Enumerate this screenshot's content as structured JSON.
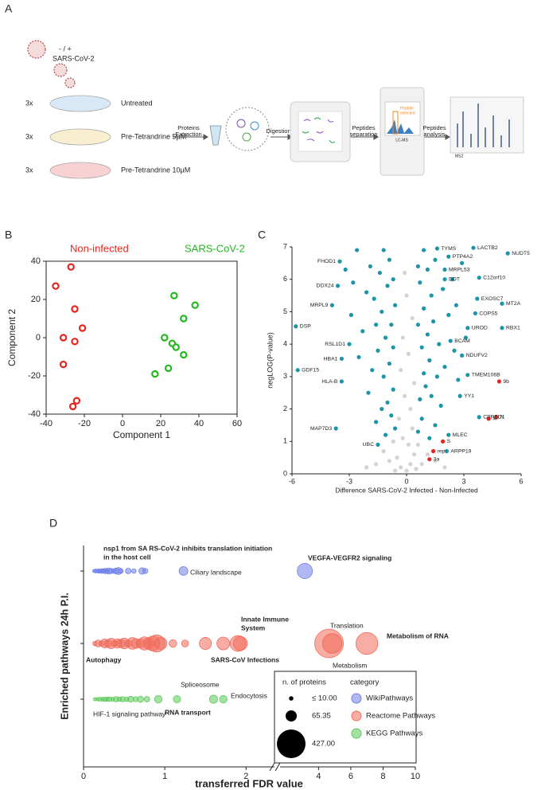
{
  "panel_a": {
    "panel": "A",
    "virus": [
      "- / +",
      "SARS-CoV-2"
    ],
    "conditions": [
      {
        "rep": "3x",
        "name": "Untreated"
      },
      {
        "rep": "3x",
        "name": "Pre-Tetrandrine 5µM"
      },
      {
        "rep": "3x",
        "name": "Pre-Tetrandrine 10µM"
      }
    ],
    "steps": {
      "extraction": [
        "Proteins",
        "Extraction"
      ],
      "digestion": "Digestion",
      "separation": [
        "Peptides",
        "separation"
      ],
      "analysis": [
        "Peptides",
        "analysis"
      ]
    },
    "instruments": {
      "lcms": "LC-MS",
      "selected": [
        "Peptide",
        "selected"
      ],
      "ms2": "MS2"
    }
  },
  "chart_data": [
    {
      "type": "scatter",
      "panel": "B",
      "xlabel": "Component 1",
      "ylabel": "Component 2",
      "xlim": [
        -40,
        60
      ],
      "xticks": [
        -40,
        -20,
        0,
        20,
        40,
        60
      ],
      "ylim": [
        -40,
        40
      ],
      "yticks": [
        -40,
        -20,
        0,
        20,
        40
      ],
      "series": [
        {
          "name": "Non-infected",
          "color": "#e8251d",
          "x": [
            -27,
            -35,
            -25,
            -31,
            -21,
            -25,
            -31,
            -24,
            -26
          ],
          "values": [
            37,
            27,
            15,
            0,
            5,
            -2,
            -14,
            -33,
            -36
          ]
        },
        {
          "name": "SARS-CoV-2",
          "color": "#22b81e",
          "x": [
            27,
            38,
            32,
            22,
            26,
            28,
            32,
            24,
            17
          ],
          "values": [
            22,
            17,
            10,
            0,
            -3,
            -5,
            -9,
            -16,
            -19
          ]
        }
      ]
    },
    {
      "type": "volcano",
      "panel": "C",
      "xlabel": "Difference SARS-CoV-2 Infected - Non-Infected",
      "ylabel": "negLOG(P-value)",
      "xlim": [
        -6,
        6
      ],
      "xticks": [
        -6,
        -3,
        0,
        3,
        6
      ],
      "ylim": [
        0,
        7
      ],
      "yticks": [
        0,
        1,
        2,
        3,
        4,
        5,
        6,
        7
      ],
      "groups": [
        {
          "color": "#d3d3d3",
          "x": [
            0,
            0.2,
            -0.3,
            0.4,
            -0.5,
            0.1,
            -0.2,
            0.3,
            -0.4,
            0.2,
            -0.1,
            0.4,
            -0.3,
            0.1,
            -0.2,
            0.3,
            0,
            -0.1,
            0.8,
            -0.9,
            1.1,
            -1.2,
            0.6,
            -0.7,
            1.5,
            -1.6,
            0.5,
            -0.6,
            2,
            -2.1
          ],
          "values": [
            0.1,
            0.3,
            0.2,
            0.6,
            0.5,
            0.9,
            1.1,
            1.4,
            1.7,
            2,
            2.4,
            2.8,
            3.2,
            3.7,
            4.2,
            4.8,
            5.5,
            6.2,
            0.3,
            0.4,
            0.6,
            0.7,
            0.9,
            1,
            0.4,
            0.3,
            0.15,
            0.1,
            0.2,
            0.2
          ]
        },
        {
          "color": "#1b95a8",
          "x": [
            -0.6,
            -0.8,
            -1,
            -0.7,
            -1.2,
            -0.9,
            -1.5,
            -1.1,
            -0.8,
            -1.3,
            -1.7,
            -1,
            -1.4,
            -0.9,
            -1.2,
            -2,
            -1.8,
            -2.3,
            -2.1,
            -1.9,
            -2.6,
            -2.8,
            -2.5,
            -1.6,
            -1.3,
            -0.7,
            -0.6,
            -0.7,
            -1.6,
            -3.2,
            -2.9,
            -1.1,
            0.6,
            0.8,
            0.7,
            1,
            0.9,
            1.2,
            0.8,
            1.1,
            1.4,
            0.9,
            1.3,
            0.7,
            1.1,
            1.5,
            0.9,
            1.8,
            2,
            1.7,
            2.2,
            1.9,
            2.4,
            2.6,
            2.5,
            1.5,
            1.3,
            0.6,
            0.6,
            1.6,
            2.9,
            3.1,
            2.7,
            1.2
          ],
          "values": [
            1.4,
            1.8,
            2.2,
            2.6,
            3,
            3.4,
            3.8,
            4.2,
            4.6,
            5,
            5.4,
            5.8,
            6.2,
            6.6,
            6.9,
            2.5,
            3.2,
            4.4,
            5.6,
            6.4,
            6.9,
            5.9,
            3.6,
            1.6,
            2,
            3.9,
            5.2,
            6,
            4.6,
            6.3,
            4.9,
            1.2,
            1.3,
            1.7,
            2.3,
            2.7,
            3.1,
            3.5,
            3.9,
            4.3,
            4.7,
            5.1,
            5.5,
            5.9,
            6.3,
            6.6,
            6.9,
            2.1,
            3.3,
            4,
            4.9,
            5.7,
            6,
            5.2,
            3.8,
            1.5,
            2.4,
            4.6,
            6.4,
            3,
            6.5,
            4.2,
            2.9,
            1.1
          ]
        }
      ],
      "labeled": [
        {
          "label": "TYMS",
          "color": "#1b95a8",
          "x": 1.6,
          "y": 6.95
        },
        {
          "label": "LACTB2",
          "color": "#1b95a8",
          "x": 3.5,
          "y": 6.97
        },
        {
          "label": "NUDT5",
          "color": "#1b95a8",
          "x": 5.3,
          "y": 6.8
        },
        {
          "label": "PTP4A2",
          "color": "#1b95a8",
          "x": 2.2,
          "y": 6.7
        },
        {
          "label": "MRPL53",
          "color": "#1b95a8",
          "x": 2,
          "y": 6.3
        },
        {
          "label": "DDT",
          "color": "#1b95a8",
          "x": 2,
          "y": 6
        },
        {
          "label": "C12orf10",
          "color": "#1b95a8",
          "x": 3.8,
          "y": 6.05
        },
        {
          "label": "EXOSC7",
          "color": "#1b95a8",
          "x": 3.7,
          "y": 5.4
        },
        {
          "label": "MT2A",
          "color": "#1b95a8",
          "x": 5,
          "y": 5.25
        },
        {
          "label": "COPS5",
          "color": "#1b95a8",
          "x": 3.6,
          "y": 4.95
        },
        {
          "label": "RBX1",
          "color": "#1b95a8",
          "x": 5,
          "y": 4.5
        },
        {
          "label": "UROD",
          "color": "#1b95a8",
          "x": 3.2,
          "y": 4.5
        },
        {
          "label": "BCAM",
          "color": "#1b95a8",
          "x": 2.3,
          "y": 4.1
        },
        {
          "label": "NDUFV2",
          "color": "#1b95a8",
          "x": 2.9,
          "y": 3.65
        },
        {
          "label": "TMEM106B",
          "color": "#1b95a8",
          "x": 3.2,
          "y": 3.05
        },
        {
          "label": "9b",
          "color": "#e8251d",
          "x": 4.85,
          "y": 2.85
        },
        {
          "label": "YY1",
          "color": "#1b95a8",
          "x": 2.8,
          "y": 2.4
        },
        {
          "label": "M",
          "color": "#e8251d",
          "x": 4.3,
          "y": 1.7
        },
        {
          "label": "N",
          "color": "#e8251d",
          "x": 4.7,
          "y": 1.75
        },
        {
          "label": "CPPED1",
          "color": "#1b95a8",
          "x": 3.8,
          "y": 1.75
        },
        {
          "label": "MLEC",
          "color": "#1b95a8",
          "x": 2.2,
          "y": 1.2
        },
        {
          "label": "S",
          "color": "#e8251d",
          "x": 1.9,
          "y": 1
        },
        {
          "label": "ARPP19",
          "color": "#1b95a8",
          "x": 2.1,
          "y": 0.7
        },
        {
          "label": "rep",
          "color": "#e8251d",
          "x": 1.4,
          "y": 0.7
        },
        {
          "label": "3a",
          "color": "#e8251d",
          "x": 1.2,
          "y": 0.45
        },
        {
          "label": "FHOD1",
          "color": "#1b95a8",
          "x": -3.5,
          "y": 6.55
        },
        {
          "label": "DDX24",
          "color": "#1b95a8",
          "x": -3.6,
          "y": 5.8
        },
        {
          "label": "MRPL9",
          "color": "#1b95a8",
          "x": -3.9,
          "y": 5.2
        },
        {
          "label": "DSP",
          "color": "#1b95a8",
          "x": -5.8,
          "y": 4.55
        },
        {
          "label": "RSL1D1",
          "color": "#1b95a8",
          "x": -3,
          "y": 4
        },
        {
          "label": "HBA1",
          "color": "#1b95a8",
          "x": -3.4,
          "y": 3.55
        },
        {
          "label": "GDF15",
          "color": "#1b95a8",
          "x": -5.7,
          "y": 3.2
        },
        {
          "label": "HLA-B",
          "color": "#1b95a8",
          "x": -3.4,
          "y": 2.85
        },
        {
          "label": "MAP7D3",
          "color": "#1b95a8",
          "x": -3.7,
          "y": 1.4
        },
        {
          "label": "UBC",
          "color": "#1b95a8",
          "x": -1.5,
          "y": 0.9
        }
      ]
    },
    {
      "type": "bubble",
      "panel": "D",
      "xlabel": "transferred FDR value",
      "ylabel": "Enriched pathways 24h P.I.",
      "xlim": [
        0,
        10
      ],
      "xticks": [
        0,
        1,
        2,
        4,
        6,
        8,
        10
      ],
      "x_break": [
        2.35,
        2.5
      ],
      "size_title": "n. of proteins",
      "legend_title": "category",
      "size_legend": [
        {
          "value": 10,
          "label": "≤ 10.00"
        },
        {
          "value": 65.35,
          "label": "65.35"
        },
        {
          "value": 427,
          "label": "427.00"
        }
      ],
      "series": [
        {
          "name": "WikiPathways",
          "color": "#6f7fe8",
          "x": [
            0.13,
            0.15,
            0.17,
            0.19,
            0.21,
            0.23,
            0.25,
            0.27,
            0.29,
            0.31,
            0.34,
            0.37,
            0.4,
            0.43,
            0.46,
            0.55,
            0.62,
            0.72,
            0.76,
            1.23,
            3.15
          ],
          "sizes": [
            5,
            8,
            6,
            10,
            7,
            12,
            9,
            15,
            8,
            20,
            14,
            10,
            18,
            25,
            12,
            16,
            10,
            22,
            14,
            40,
            120
          ]
        },
        {
          "name": "Reactome Pathways",
          "color": "#f06a5a",
          "x": [
            0.14,
            0.18,
            0.22,
            0.26,
            0.3,
            0.34,
            0.38,
            0.42,
            0.46,
            0.5,
            0.55,
            0.6,
            0.65,
            0.7,
            0.75,
            0.8,
            0.85,
            0.9,
            0.95,
            1.1,
            1.25,
            1.5,
            1.72,
            1.9,
            1.93,
            4.65,
            4.85,
            7
          ],
          "sizes": [
            10,
            25,
            15,
            40,
            30,
            55,
            20,
            45,
            35,
            60,
            28,
            70,
            50,
            40,
            90,
            65,
            110,
            150,
            80,
            30,
            25,
            75,
            85,
            130,
            100,
            427,
            200,
            250
          ]
        },
        {
          "name": "KEGG Pathways",
          "color": "#5cc95a",
          "x": [
            0.14,
            0.17,
            0.2,
            0.23,
            0.26,
            0.29,
            0.32,
            0.36,
            0.4,
            0.44,
            0.48,
            0.53,
            0.58,
            0.64,
            0.7,
            0.78,
            0.92,
            1.15,
            1.6,
            1.72
          ],
          "sizes": [
            5,
            6,
            8,
            7,
            10,
            9,
            12,
            8,
            15,
            10,
            14,
            11,
            18,
            13,
            20,
            16,
            30,
            28,
            35,
            30
          ]
        }
      ],
      "annotations": [
        {
          "lines": [
            "nsp1 from SA RS-CoV-2 inhibits translation initiation",
            "in the host cell"
          ],
          "bold": true
        },
        {
          "lines": [
            "Ciliary landscape"
          ],
          "bold": false
        },
        {
          "lines": [
            "VEGFA-VEGFR2 signaling"
          ],
          "bold": true
        },
        {
          "lines": [
            "Innate Immune",
            "System"
          ],
          "bold": true
        },
        {
          "lines": [
            "Translation"
          ],
          "bold": false
        },
        {
          "lines": [
            "Metabolism of RNA"
          ],
          "bold": true
        },
        {
          "lines": [
            "Autophagy"
          ],
          "bold": true
        },
        {
          "lines": [
            "SARS-CoV Infections"
          ],
          "bold": true
        },
        {
          "lines": [
            "Metabolism"
          ],
          "bold": false
        },
        {
          "lines": [
            "Spliceosome"
          ],
          "bold": false
        },
        {
          "lines": [
            "Endocytosis"
          ],
          "bold": false
        },
        {
          "lines": [
            "HIF-1 signaling pathway"
          ],
          "bold": false
        },
        {
          "lines": [
            "RNA transport"
          ],
          "bold": true
        }
      ]
    }
  ]
}
